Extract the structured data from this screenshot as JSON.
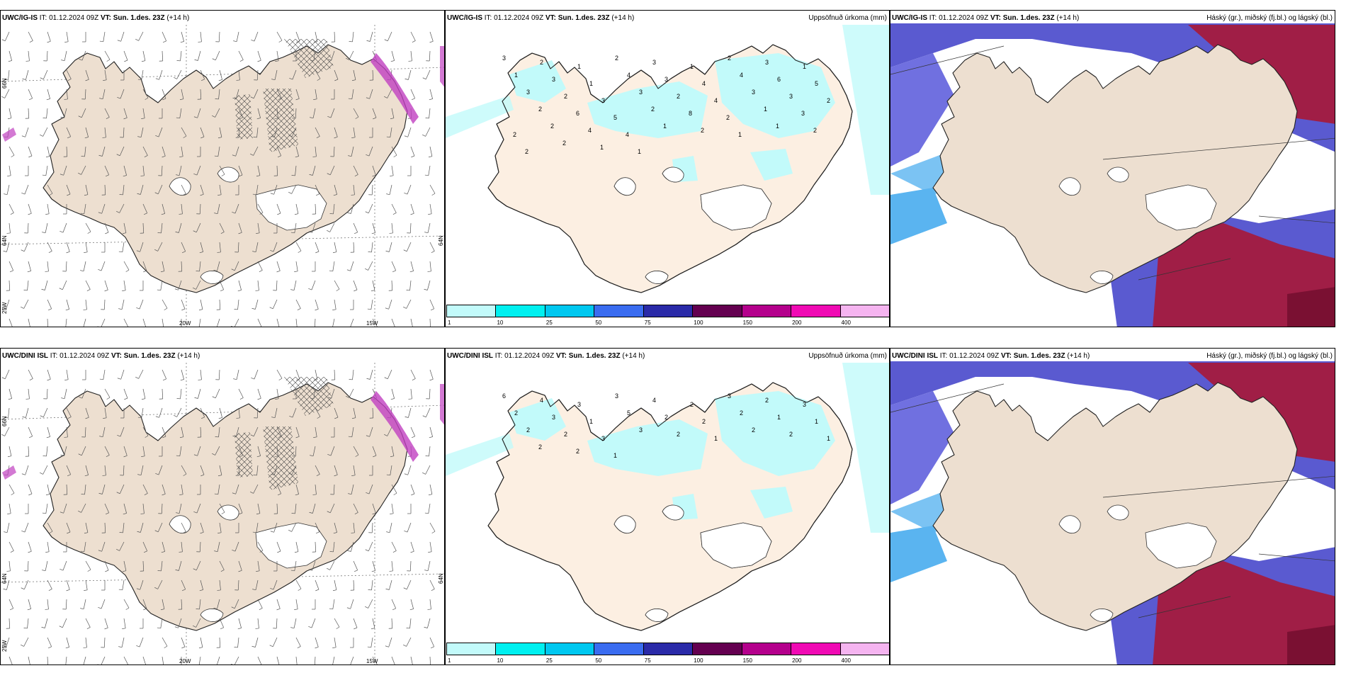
{
  "rows": [
    {
      "model": "UWC/IG-IS",
      "init_label": "IT:",
      "init_value": "01.12.2024 09Z",
      "valid_label": "VT:",
      "valid_value": "Sun. 1.des. 23Z",
      "lead": "(+14 h)"
    },
    {
      "model": "UWC/DINI ISL",
      "init_label": "IT:",
      "init_value": "01.12.2024 09Z",
      "valid_label": "VT:",
      "valid_value": "Sun. 1.des. 23Z",
      "lead": "(+14 h)"
    }
  ],
  "precip_title": "Uppsöfnuð úrkoma (mm)",
  "cloud_title": "Háský (gr.), miðský (fj.bl.) og lágský (bl.)",
  "graticule": {
    "lat_labels": [
      "66N",
      "64N",
      "25W"
    ],
    "lon_labels": [
      "20W",
      "15W"
    ],
    "right_lat_label": "64N"
  },
  "precip_scale": {
    "ticks": [
      "1",
      "10",
      "25",
      "50",
      "75",
      "100",
      "150",
      "200",
      "400"
    ],
    "colors": [
      "#c2fafa",
      "#00f0f0",
      "#00c8f0",
      "#3a6cf0",
      "#2a2aa8",
      "#640050",
      "#b4008c",
      "#f00ab4",
      "#f5b4f0"
    ]
  },
  "precip_values_top": [
    "3",
    "2",
    "1",
    "2",
    "3",
    "1",
    "2",
    "3",
    "1",
    "1",
    "3",
    "1",
    "4",
    "3",
    "4",
    "4",
    "6",
    "5",
    "3",
    "2",
    "3",
    "3",
    "2",
    "4",
    "3",
    "3",
    "2",
    "2",
    "6",
    "5",
    "2",
    "8",
    "2",
    "1",
    "3",
    "2",
    "2",
    "4",
    "4",
    "1",
    "2",
    "1",
    "1",
    "2",
    "2",
    "2",
    "1",
    "1"
  ],
  "precip_values_bottom": [
    "6",
    "4",
    "3",
    "3",
    "4",
    "2",
    "3",
    "2",
    "3",
    "2",
    "3",
    "1",
    "5",
    "2",
    "2",
    "2",
    "1",
    "1",
    "2",
    "2",
    "3",
    "3",
    "2",
    "1",
    "2",
    "2",
    "1",
    "2",
    "2",
    "1"
  ],
  "colors": {
    "land": "#eddfd0",
    "land_precip": "#fcefe2",
    "precip_light": "#c2fafa",
    "cloud_high": "#5a5ad0",
    "cloud_high2": "#7070e0",
    "cloud_mid": "#5ab4f0",
    "cloud_low": "#a01e46",
    "cloud_low2": "#7a1032",
    "orange": "#f0a050",
    "magenta": "#c040c0",
    "pink": "#e090e0"
  }
}
